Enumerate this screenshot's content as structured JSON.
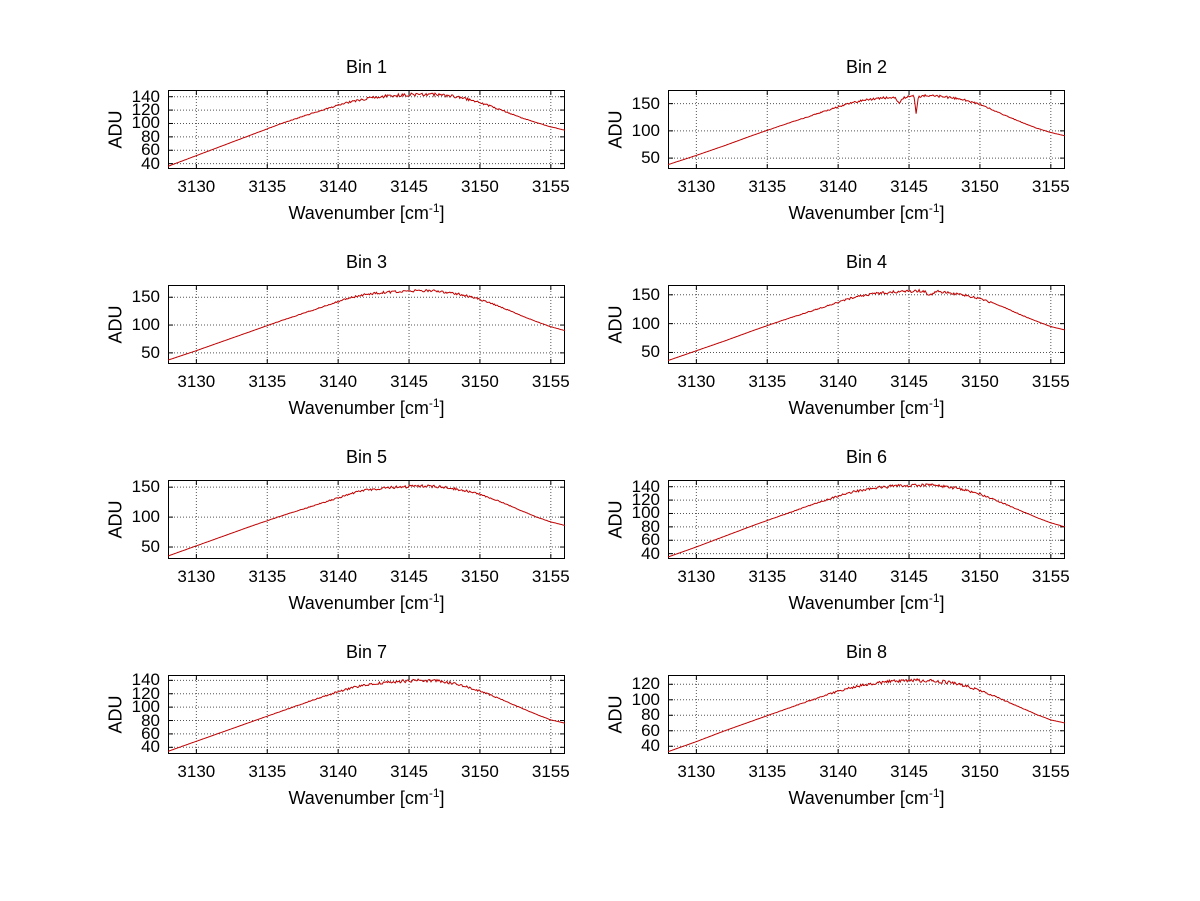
{
  "figure": {
    "background": "#ffffff",
    "line_color": "#c00000",
    "grid_color": "#555555",
    "axis_color": "#000000",
    "ylabel": "ADU",
    "xlabel_main": "Wavenumber [cm",
    "xlabel_sup": "-1",
    "xlabel_close": "]"
  },
  "chart_data": [
    {
      "type": "line",
      "title": "Bin 1",
      "xlabel": "Wavenumber [cm⁻¹]",
      "ylabel": "ADU",
      "xlim": [
        3128,
        3156
      ],
      "xticks": [
        3130,
        3135,
        3140,
        3145,
        3150,
        3155
      ],
      "ylim": [
        32,
        150
      ],
      "yticks": [
        40,
        60,
        80,
        100,
        120,
        140
      ],
      "grid": true,
      "legend": false,
      "noise_amplitude": 2.4,
      "series": [
        {
          "name": "spectrum",
          "points": [
            [
              3128,
              36
            ],
            [
              3130,
              52
            ],
            [
              3132,
              68
            ],
            [
              3134,
              84
            ],
            [
              3136,
              100
            ],
            [
              3138,
              114
            ],
            [
              3140,
              127
            ],
            [
              3141,
              133
            ],
            [
              3142,
              137
            ],
            [
              3143,
              140
            ],
            [
              3144,
              142
            ],
            [
              3145,
              143
            ],
            [
              3146,
              144
            ],
            [
              3147,
              143
            ],
            [
              3148,
              141
            ],
            [
              3149,
              137
            ],
            [
              3150,
              131
            ],
            [
              3151,
              124
            ],
            [
              3152,
              116
            ],
            [
              3153,
              108
            ],
            [
              3154,
              101
            ],
            [
              3155,
              95
            ],
            [
              3156,
              90
            ]
          ]
        }
      ]
    },
    {
      "type": "line",
      "title": "Bin 2",
      "xlabel": "Wavenumber [cm⁻¹]",
      "ylabel": "ADU",
      "xlim": [
        3128,
        3156
      ],
      "xticks": [
        3130,
        3135,
        3140,
        3145,
        3150,
        3155
      ],
      "ylim": [
        30,
        175
      ],
      "yticks": [
        50,
        100,
        150
      ],
      "grid": true,
      "legend": false,
      "noise_amplitude": 2.4,
      "series": [
        {
          "name": "spectrum",
          "points": [
            [
              3128,
              38
            ],
            [
              3130,
              55
            ],
            [
              3132,
              73
            ],
            [
              3134,
              92
            ],
            [
              3136,
              110
            ],
            [
              3138,
              127
            ],
            [
              3140,
              144
            ],
            [
              3141,
              152
            ],
            [
              3142,
              157
            ],
            [
              3143,
              160
            ],
            [
              3144,
              162
            ],
            [
              3144.3,
              151
            ],
            [
              3144.6,
              161
            ],
            [
              3145,
              163
            ],
            [
              3145.35,
              164
            ],
            [
              3145.5,
              131
            ],
            [
              3145.65,
              163
            ],
            [
              3146,
              165
            ],
            [
              3147,
              164
            ],
            [
              3148,
              161
            ],
            [
              3149,
              156
            ],
            [
              3150,
              149
            ],
            [
              3151,
              137
            ],
            [
              3152,
              126
            ],
            [
              3153,
              115
            ],
            [
              3154,
              105
            ],
            [
              3155,
              97
            ],
            [
              3156,
              91
            ]
          ]
        }
      ]
    },
    {
      "type": "line",
      "title": "Bin 3",
      "xlabel": "Wavenumber [cm⁻¹]",
      "ylabel": "ADU",
      "xlim": [
        3128,
        3156
      ],
      "xticks": [
        3130,
        3135,
        3140,
        3145,
        3150,
        3155
      ],
      "ylim": [
        30,
        172
      ],
      "yticks": [
        50,
        100,
        150
      ],
      "grid": true,
      "legend": false,
      "noise_amplitude": 2.4,
      "series": [
        {
          "name": "spectrum",
          "points": [
            [
              3128,
              37
            ],
            [
              3130,
              54
            ],
            [
              3132,
              72
            ],
            [
              3134,
              90
            ],
            [
              3136,
              108
            ],
            [
              3138,
              125
            ],
            [
              3140,
              142
            ],
            [
              3141,
              150
            ],
            [
              3142,
              155
            ],
            [
              3143,
              158
            ],
            [
              3144,
              160
            ],
            [
              3145,
              161
            ],
            [
              3146,
              162
            ],
            [
              3147,
              161
            ],
            [
              3148,
              158
            ],
            [
              3149,
              153
            ],
            [
              3150,
              146
            ],
            [
              3151,
              137
            ],
            [
              3152,
              127
            ],
            [
              3153,
              116
            ],
            [
              3154,
              106
            ],
            [
              3155,
              97
            ],
            [
              3156,
              90
            ]
          ]
        }
      ]
    },
    {
      "type": "line",
      "title": "Bin 4",
      "xlabel": "Wavenumber [cm⁻¹]",
      "ylabel": "ADU",
      "xlim": [
        3128,
        3156
      ],
      "xticks": [
        3130,
        3135,
        3140,
        3145,
        3150,
        3155
      ],
      "ylim": [
        30,
        167
      ],
      "yticks": [
        50,
        100,
        150
      ],
      "grid": true,
      "legend": false,
      "noise_amplitude": 2.4,
      "series": [
        {
          "name": "spectrum",
          "points": [
            [
              3128,
              36
            ],
            [
              3130,
              53
            ],
            [
              3132,
              70
            ],
            [
              3134,
              88
            ],
            [
              3136,
              105
            ],
            [
              3138,
              121
            ],
            [
              3140,
              137
            ],
            [
              3141,
              145
            ],
            [
              3142,
              150
            ],
            [
              3143,
              153
            ],
            [
              3144,
              155
            ],
            [
              3145,
              156
            ],
            [
              3146,
              157
            ],
            [
              3146.5,
              149
            ],
            [
              3147,
              156
            ],
            [
              3148,
              153
            ],
            [
              3149,
              149
            ],
            [
              3150,
              143
            ],
            [
              3151,
              135
            ],
            [
              3152,
              125
            ],
            [
              3153,
              114
            ],
            [
              3154,
              104
            ],
            [
              3155,
              95
            ],
            [
              3156,
              89
            ]
          ]
        }
      ]
    },
    {
      "type": "line",
      "title": "Bin 5",
      "xlabel": "Wavenumber [cm⁻¹]",
      "ylabel": "ADU",
      "xlim": [
        3128,
        3156
      ],
      "xticks": [
        3130,
        3135,
        3140,
        3145,
        3150,
        3155
      ],
      "ylim": [
        30,
        162
      ],
      "yticks": [
        50,
        100,
        150
      ],
      "grid": true,
      "legend": false,
      "noise_amplitude": 2.4,
      "series": [
        {
          "name": "spectrum",
          "points": [
            [
              3128,
              35
            ],
            [
              3130,
              52
            ],
            [
              3132,
              69
            ],
            [
              3134,
              86
            ],
            [
              3136,
              102
            ],
            [
              3138,
              117
            ],
            [
              3140,
              132
            ],
            [
              3141,
              140
            ],
            [
              3142,
              145
            ],
            [
              3143,
              148
            ],
            [
              3144,
              150
            ],
            [
              3145,
              151
            ],
            [
              3146,
              152
            ],
            [
              3147,
              151
            ],
            [
              3148,
              148
            ],
            [
              3149,
              144
            ],
            [
              3150,
              138
            ],
            [
              3151,
              130
            ],
            [
              3152,
              120
            ],
            [
              3153,
              110
            ],
            [
              3154,
              100
            ],
            [
              3155,
              92
            ],
            [
              3156,
              86
            ]
          ]
        }
      ]
    },
    {
      "type": "line",
      "title": "Bin 6",
      "xlabel": "Wavenumber [cm⁻¹]",
      "ylabel": "ADU",
      "xlim": [
        3128,
        3156
      ],
      "xticks": [
        3130,
        3135,
        3140,
        3145,
        3150,
        3155
      ],
      "ylim": [
        32,
        150
      ],
      "yticks": [
        40,
        60,
        80,
        100,
        120,
        140
      ],
      "grid": true,
      "legend": false,
      "noise_amplitude": 2.4,
      "series": [
        {
          "name": "spectrum",
          "points": [
            [
              3128,
              35
            ],
            [
              3130,
              50
            ],
            [
              3132,
              66
            ],
            [
              3134,
              82
            ],
            [
              3136,
              97
            ],
            [
              3138,
              112
            ],
            [
              3140,
              126
            ],
            [
              3141,
              132
            ],
            [
              3142,
              136
            ],
            [
              3143,
              139
            ],
            [
              3144,
              141
            ],
            [
              3145,
              142
            ],
            [
              3146,
              143
            ],
            [
              3147,
              142
            ],
            [
              3148,
              139
            ],
            [
              3149,
              135
            ],
            [
              3150,
              129
            ],
            [
              3151,
              121
            ],
            [
              3152,
              112
            ],
            [
              3153,
              103
            ],
            [
              3154,
              94
            ],
            [
              3155,
              86
            ],
            [
              3156,
              80
            ]
          ]
        }
      ]
    },
    {
      "type": "line",
      "title": "Bin 7",
      "xlabel": "Wavenumber [cm⁻¹]",
      "ylabel": "ADU",
      "xlim": [
        3128,
        3156
      ],
      "xticks": [
        3130,
        3135,
        3140,
        3145,
        3150,
        3155
      ],
      "ylim": [
        30,
        148
      ],
      "yticks": [
        40,
        60,
        80,
        100,
        120,
        140
      ],
      "grid": true,
      "legend": false,
      "noise_amplitude": 2.4,
      "series": [
        {
          "name": "spectrum",
          "points": [
            [
              3128,
              34
            ],
            [
              3130,
              49
            ],
            [
              3132,
              64
            ],
            [
              3134,
              79
            ],
            [
              3136,
              94
            ],
            [
              3138,
              109
            ],
            [
              3140,
              123
            ],
            [
              3141,
              129
            ],
            [
              3142,
              133
            ],
            [
              3143,
              136
            ],
            [
              3144,
              138
            ],
            [
              3145,
              139
            ],
            [
              3146,
              140
            ],
            [
              3147,
              139
            ],
            [
              3148,
              136
            ],
            [
              3149,
              131
            ],
            [
              3150,
              124
            ],
            [
              3151,
              116
            ],
            [
              3152,
              107
            ],
            [
              3153,
              98
            ],
            [
              3154,
              89
            ],
            [
              3155,
              81
            ],
            [
              3156,
              76
            ]
          ]
        }
      ]
    },
    {
      "type": "line",
      "title": "Bin 8",
      "xlabel": "Wavenumber [cm⁻¹]",
      "ylabel": "ADU",
      "xlim": [
        3128,
        3156
      ],
      "xticks": [
        3130,
        3135,
        3140,
        3145,
        3150,
        3155
      ],
      "ylim": [
        30,
        132
      ],
      "yticks": [
        40,
        60,
        80,
        100,
        120
      ],
      "grid": true,
      "legend": false,
      "noise_amplitude": 2.4,
      "series": [
        {
          "name": "spectrum",
          "points": [
            [
              3128,
              33
            ],
            [
              3130,
              46
            ],
            [
              3132,
              60
            ],
            [
              3134,
              73
            ],
            [
              3136,
              86
            ],
            [
              3138,
              99
            ],
            [
              3140,
              111
            ],
            [
              3141,
              116
            ],
            [
              3142,
              120
            ],
            [
              3143,
              122
            ],
            [
              3144,
              124
            ],
            [
              3145,
              125
            ],
            [
              3146,
              125
            ],
            [
              3147,
              124
            ],
            [
              3148,
              122
            ],
            [
              3149,
              118
            ],
            [
              3150,
              112
            ],
            [
              3151,
              105
            ],
            [
              3152,
              97
            ],
            [
              3153,
              89
            ],
            [
              3154,
              81
            ],
            [
              3155,
              74
            ],
            [
              3156,
              70
            ]
          ]
        }
      ]
    }
  ]
}
